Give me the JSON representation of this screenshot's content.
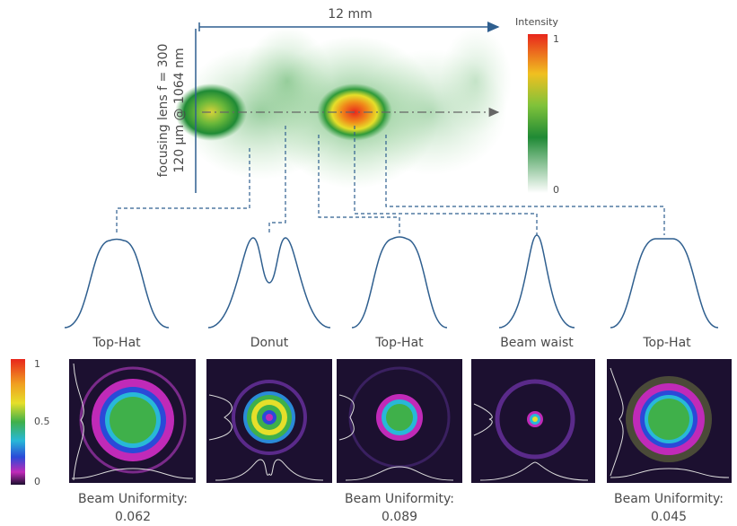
{
  "heatmap": {
    "width_label": "12 mm",
    "lens_label": "focusing lens f = 300",
    "spot_label": "120 µm @ 1064 nm",
    "colorbar": {
      "title": "Intensity",
      "max": 1,
      "min": 0
    }
  },
  "profiles": [
    {
      "label": "Top-Hat"
    },
    {
      "label": "Donut"
    },
    {
      "label": "Top-Hat"
    },
    {
      "label": "Beam waist"
    },
    {
      "label": "Top-Hat"
    }
  ],
  "beam_colorbar": {
    "ticks": [
      1,
      0.5,
      0
    ]
  },
  "uniformity": [
    {
      "label": "Beam Uniformity:",
      "value": 0.062
    },
    {
      "label": "Beam Uniformity:",
      "value": 0.089
    },
    {
      "label": "Beam Uniformity:",
      "value": 0.045
    }
  ]
}
